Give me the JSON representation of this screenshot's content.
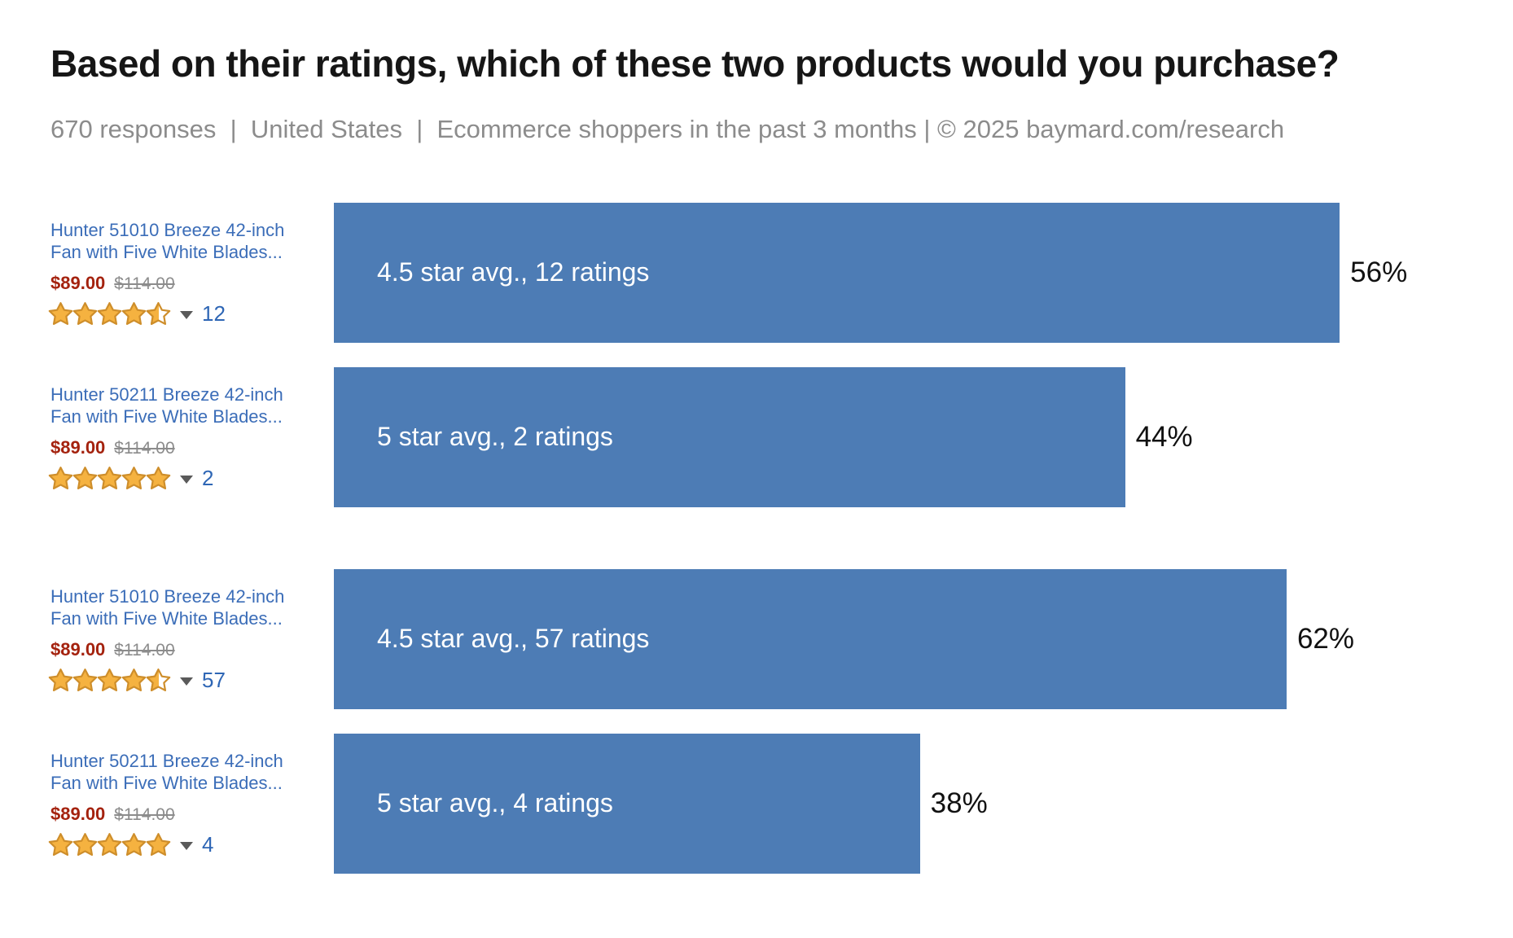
{
  "header": {
    "title": "Based on their ratings, which of these two products would you purchase?",
    "meta": "670 responses  |  United States  |  Ecommerce shoppers in the past 3 months | © 2025 baymard.com/research"
  },
  "colors": {
    "bar_blue": "#4D7CB5",
    "bar_label_white": "#FFFFFF",
    "value_label_black": "#111111",
    "product_link_blue": "#3B6DB8",
    "price_red": "#A4220E",
    "old_price_gray": "#8C8C8C",
    "meta_gray": "#8C8C8C",
    "star_gold": "#F5B240",
    "star_outline": "#CE8E2B",
    "rating_count_blue": "#2E66B5",
    "caret_gray": "#5a5a5a"
  },
  "icons": {
    "rating_dropdown": "caret-down",
    "star": "star"
  },
  "rows": [
    {
      "product": {
        "title": "Hunter 51010 Breeze 42-inch Fan with Five White Blades...",
        "price": "$89.00",
        "old_price": "$114.00",
        "stars": 4.5,
        "rating_count": "12"
      },
      "bar": {
        "label": "4.5 star avg., 12 ratings",
        "value": 56,
        "value_label": "56%",
        "width_pct": 85.3
      }
    },
    {
      "product": {
        "title": "Hunter 50211 Breeze 42-inch Fan with Five White Blades...",
        "price": "$89.00",
        "old_price": "$114.00",
        "stars": 5,
        "rating_count": "2"
      },
      "bar": {
        "label": "5 star avg., 2 ratings",
        "value": 44,
        "value_label": "44%",
        "width_pct": 67.1
      }
    },
    {
      "product": {
        "title": "Hunter 51010 Breeze 42-inch Fan with Five White Blades...",
        "price": "$89.00",
        "old_price": "$114.00",
        "stars": 4.5,
        "rating_count": "57"
      },
      "bar": {
        "label": "4.5 star avg., 57 ratings",
        "value": 62,
        "value_label": "62%",
        "width_pct": 80.8
      }
    },
    {
      "product": {
        "title": "Hunter 50211 Breeze 42-inch Fan with Five White Blades...",
        "price": "$89.00",
        "old_price": "$114.00",
        "stars": 5,
        "rating_count": "4"
      },
      "bar": {
        "label": "5 star avg., 4 ratings",
        "value": 38,
        "value_label": "38%",
        "width_pct": 49.7
      }
    }
  ],
  "chart_data": {
    "type": "bar",
    "orientation": "horizontal",
    "title": "Based on their ratings, which of these two products would you purchase?",
    "subtitle": "670 responses | United States | Ecommerce shoppers in the past 3 months | © 2025 baymard.com/research",
    "responses": 670,
    "unit": "%",
    "value_label_position": "outside-right",
    "bar_color": "#4D7CB5",
    "grid": false,
    "legend": false,
    "note": "Two independent A/B pairs; bar lengths are scaled per pair, not on a shared axis",
    "groups": [
      {
        "bars": [
          {
            "category": "Hunter 51010 Breeze 42-inch Fan — 4.5 star avg., 12 ratings",
            "value": 56
          },
          {
            "category": "Hunter 50211 Breeze 42-inch Fan — 5 star avg., 2 ratings",
            "value": 44
          }
        ]
      },
      {
        "bars": [
          {
            "category": "Hunter 51010 Breeze 42-inch Fan — 4.5 star avg., 57 ratings",
            "value": 62
          },
          {
            "category": "Hunter 50211 Breeze 42-inch Fan — 5 star avg., 4 ratings",
            "value": 38
          }
        ]
      }
    ]
  }
}
